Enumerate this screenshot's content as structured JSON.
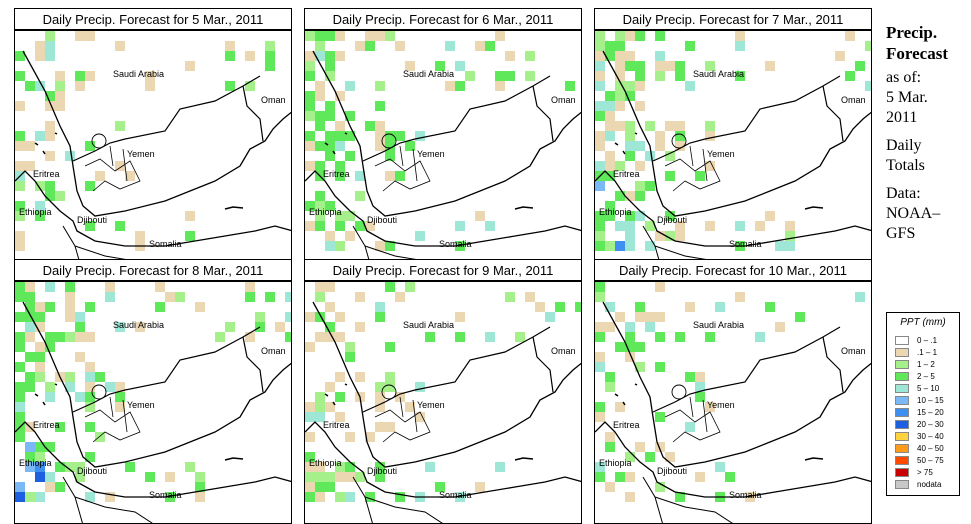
{
  "panels": [
    {
      "title": "Daily Precip. Forecast for  5 Mar., 2011"
    },
    {
      "title": "Daily Precip. Forecast for  6 Mar., 2011"
    },
    {
      "title": "Daily Precip. Forecast for  7 Mar., 2011"
    },
    {
      "title": "Daily Precip. Forecast for  8 Mar., 2011"
    },
    {
      "title": "Daily Precip. Forecast for  9 Mar., 2011"
    },
    {
      "title": "Daily Precip. Forecast for  10 Mar., 2011"
    }
  ],
  "map_labels": {
    "saudi": "Saudi Arabia",
    "oman": "Oman",
    "yemen": "Yemen",
    "eritrea": "Eritrea",
    "ethiopia": "Ethiopia",
    "djibouti": "Djibouti",
    "somalia": "Somalia"
  },
  "side": {
    "title1": "Precip.",
    "title2": "Forecast",
    "asof": "as of:",
    "date1": "5 Mar.",
    "date2": "2011",
    "daily1": "Daily",
    "daily2": "Totals",
    "data1": "Data:",
    "data2": "NOAA–",
    "data3": "GFS"
  },
  "legend": {
    "title": "PPT (mm)",
    "items": [
      {
        "label": "0 – .1",
        "color": "#ffffff"
      },
      {
        "label": ".1 – 1",
        "color": "#ecd7b3"
      },
      {
        "label": "1 – 2",
        "color": "#a6f08c"
      },
      {
        "label": "2 – 5",
        "color": "#5fe85a"
      },
      {
        "label": "5 – 10",
        "color": "#9ee6d6"
      },
      {
        "label": "10 – 15",
        "color": "#7ab8f6"
      },
      {
        "label": "15 – 20",
        "color": "#3f8ff0"
      },
      {
        "label": "20 – 30",
        "color": "#1c5fe0"
      },
      {
        "label": "30 – 40",
        "color": "#ffd240"
      },
      {
        "label": "40 – 50",
        "color": "#ff9a1a"
      },
      {
        "label": "50 – 75",
        "color": "#ff4a00"
      },
      {
        "label": "> 75",
        "color": "#c80000"
      },
      {
        "label": "nodata",
        "color": "#c8c8c8"
      }
    ]
  }
}
